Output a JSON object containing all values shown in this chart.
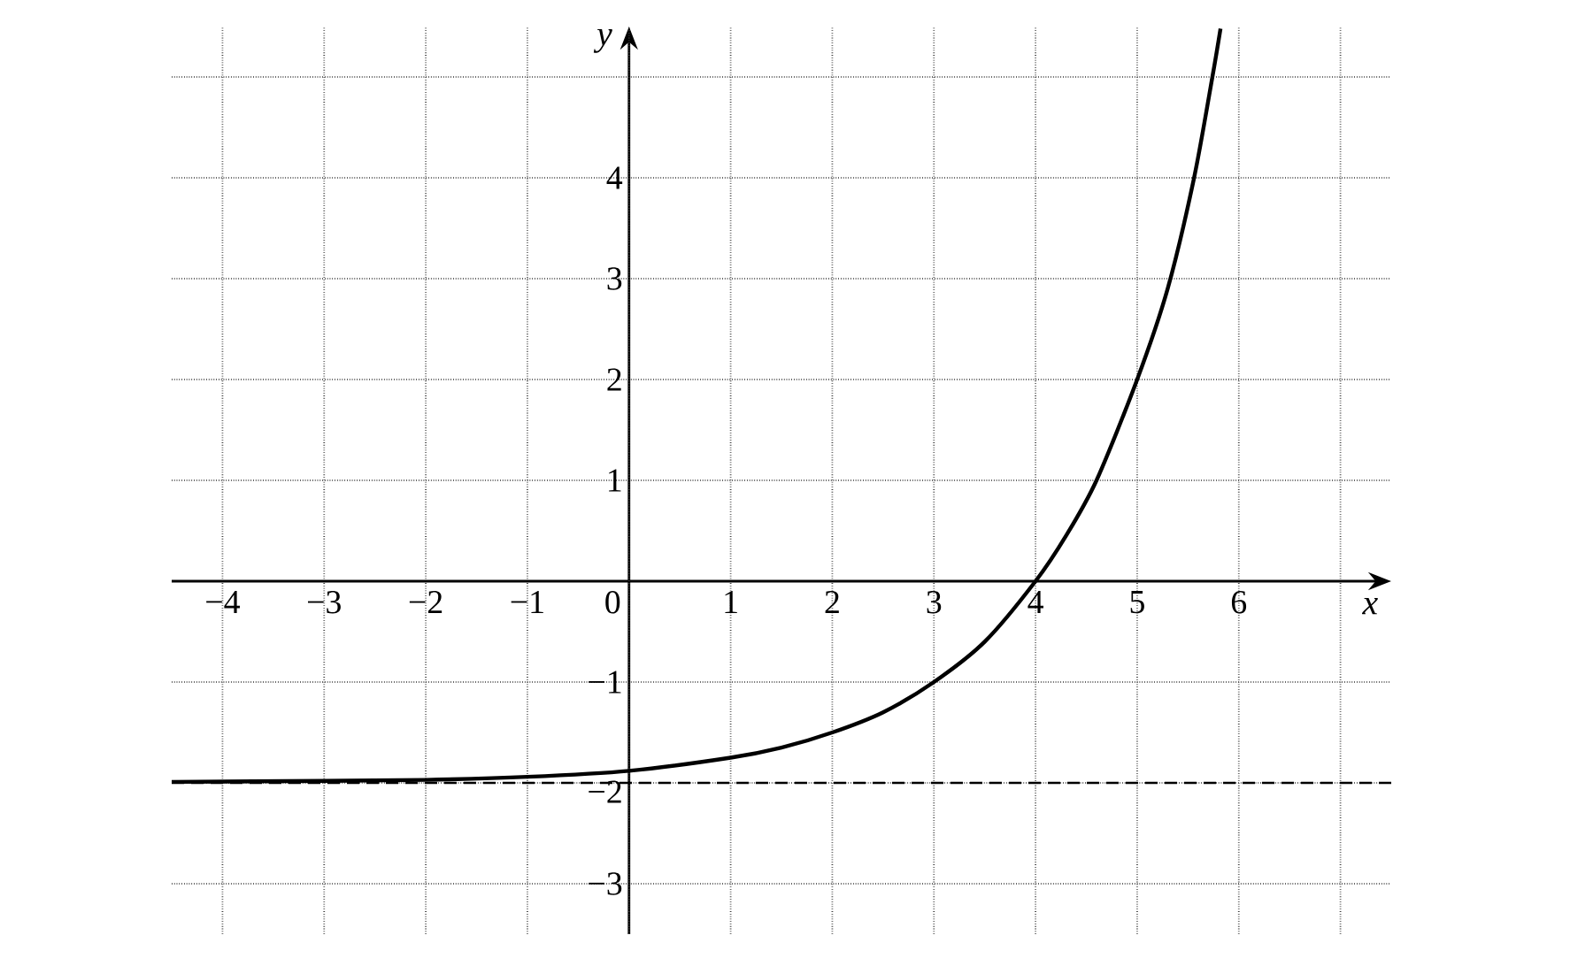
{
  "chart_data": {
    "type": "line",
    "xlabel": "x",
    "ylabel": "y",
    "x": [
      -4.5,
      -3,
      -2,
      -1,
      0,
      1,
      1.5,
      2,
      2.5,
      3,
      3.5,
      4,
      4.3,
      4.6,
      5,
      5.3,
      5.56,
      5.74,
      5.82
    ],
    "values": [
      -1.99,
      -1.98,
      -1.97,
      -1.94,
      -1.88,
      -1.75,
      -1.65,
      -1.5,
      -1.3,
      -1,
      -0.6,
      0,
      0.45,
      1,
      2,
      2.9,
      4,
      5,
      5.48
    ],
    "color": "#000000",
    "marker": "none",
    "line_style": "solid",
    "grid": true,
    "xlim": [
      -4.5,
      7.5
    ],
    "ylim": [
      -3.5,
      5.5
    ],
    "xticks": [
      {
        "value": -4,
        "label": "−4"
      },
      {
        "value": -3,
        "label": "−3"
      },
      {
        "value": -2,
        "label": "−2"
      },
      {
        "value": -1,
        "label": "−1"
      },
      0,
      1,
      2,
      3,
      4,
      5,
      6,
      {
        "value": 7,
        "label": null
      }
    ],
    "yticks": [
      {
        "value": -3,
        "label": "−3"
      },
      {
        "value": -2,
        "label": "−2"
      },
      {
        "value": -1,
        "label": "−1"
      },
      1,
      2,
      3,
      4,
      {
        "value": 5,
        "label": null
      }
    ],
    "ref_lines": [
      {
        "axis": "y",
        "value": -2,
        "color": "#000000",
        "line_style": "dashed"
      }
    ]
  }
}
